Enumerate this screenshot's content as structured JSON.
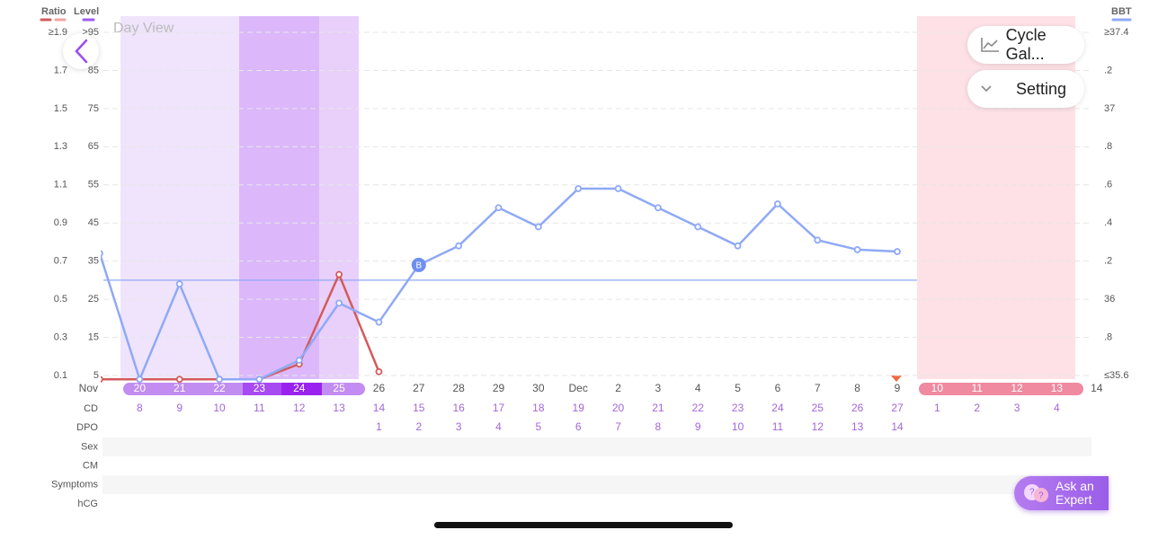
{
  "header": {
    "view_label": "Day View"
  },
  "buttons": {
    "cycle": "Cycle Gal...",
    "setting": "Setting",
    "ask_expert": "Ask an Expert"
  },
  "chart_data": {
    "type": "line",
    "month_label": "Nov",
    "level_legend": "Level",
    "categories": [
      null,
      "20",
      "21",
      "22",
      "23",
      "24",
      "25",
      "26",
      "27",
      "28",
      "29",
      "30",
      "Dec",
      "2",
      "3",
      "4",
      "5",
      "6",
      "7",
      "8",
      "9",
      "10",
      "11",
      "12",
      "13",
      "14"
    ],
    "ylim": [
      0.1,
      1.9
    ],
    "yticks": [
      {
        "value": 1.9,
        "label": "≥1.9"
      },
      1.7,
      1.5,
      1.3,
      1.1,
      0.9,
      0.7,
      0.5,
      0.3,
      0.1
    ],
    "level_lim": [
      5,
      95
    ],
    "level_ticks": [
      {
        "value": 95,
        "label": ">95"
      },
      85,
      75,
      65,
      55,
      45,
      35,
      25,
      15,
      5
    ],
    "y2lim": [
      35.6,
      37.4
    ],
    "y2ticks": [
      {
        "value": 37.4,
        "label": "≥37.4"
      },
      {
        "value": 37.2,
        "label": ".2"
      },
      37,
      {
        "value": 36.8,
        "label": ".8"
      },
      {
        "value": 36.6,
        "label": ".6"
      },
      {
        "value": 36.4,
        "label": ".4"
      },
      {
        "value": 36.2,
        "label": ".2"
      },
      36,
      {
        "value": 35.8,
        "label": ".8"
      },
      {
        "value": 35.6,
        "label": "≤35.6"
      }
    ],
    "grid": true,
    "coverline": 36.1,
    "marker_label": "B",
    "series": [
      {
        "name": "Ratio",
        "color": "#d35b5b",
        "values": [
          0.08,
          0.08,
          0.08,
          0.08,
          0.08,
          0.16,
          0.63,
          0.12,
          null,
          null,
          null,
          null,
          null,
          null,
          null,
          null,
          null,
          null,
          null,
          null,
          null,
          null,
          null,
          null,
          null,
          null
        ]
      },
      {
        "name": "BBT",
        "color": "#8fa9f6",
        "axis": "y2",
        "values": [
          36.24,
          35.58,
          36.08,
          35.58,
          35.58,
          35.68,
          35.98,
          35.88,
          36.18,
          36.28,
          36.48,
          36.38,
          36.58,
          36.58,
          36.48,
          36.38,
          36.28,
          36.5,
          36.31,
          36.26,
          36.25,
          null,
          null,
          null,
          null,
          null
        ]
      }
    ]
  },
  "rows": {
    "labels": [
      "CD",
      "DPO",
      "Sex",
      "CM",
      "Symptoms",
      "hCG"
    ],
    "cd": [
      null,
      8,
      9,
      10,
      11,
      12,
      13,
      14,
      15,
      16,
      17,
      18,
      19,
      20,
      21,
      22,
      23,
      24,
      25,
      26,
      27,
      1,
      2,
      3,
      4,
      null
    ],
    "dpo": [
      null,
      null,
      null,
      null,
      null,
      null,
      null,
      1,
      2,
      3,
      4,
      5,
      6,
      7,
      8,
      9,
      10,
      11,
      12,
      13,
      14,
      null,
      null,
      null,
      null,
      null
    ]
  }
}
